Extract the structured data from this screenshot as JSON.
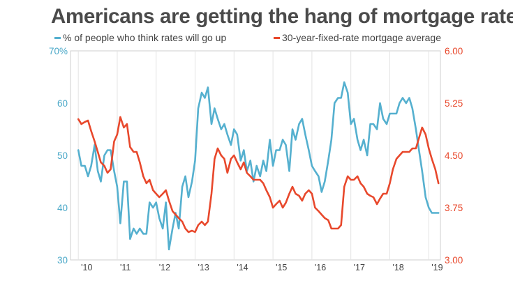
{
  "chart_data": {
    "type": "line",
    "title": "Americans are getting the hang of mortgage rates",
    "legend_placement": "top",
    "grid": "vertical",
    "x_ticks": [
      "'10",
      "'11",
      "'12",
      "'13",
      "'14",
      "'15",
      "'16",
      "'17",
      "'18",
      "'19"
    ],
    "xlim": [
      2009.8,
      2019.3
    ],
    "left_axis": {
      "range": [
        30,
        70
      ],
      "ticks": [
        {
          "value": 30,
          "label": "30"
        },
        {
          "value": 40,
          "label": "40"
        },
        {
          "value": 50,
          "label": "50"
        },
        {
          "value": 60,
          "label": "60"
        },
        {
          "value": 70,
          "label": "70%"
        }
      ],
      "color": "#4aa8c8"
    },
    "right_axis": {
      "range": [
        3.0,
        6.0
      ],
      "ticks": [
        {
          "value": 3.0,
          "label": "3.00"
        },
        {
          "value": 3.75,
          "label": "3.75"
        },
        {
          "value": 4.5,
          "label": "4.50"
        },
        {
          "value": 5.25,
          "label": "5.25"
        },
        {
          "value": 6.0,
          "label": "6.00"
        }
      ],
      "color": "#e8482c"
    },
    "series": [
      {
        "name": "% of people who think rates will go up",
        "axis": "left",
        "color": "#55b0cf",
        "x": [
          2010.0,
          2010.08,
          2010.17,
          2010.25,
          2010.33,
          2010.42,
          2010.5,
          2010.58,
          2010.67,
          2010.75,
          2010.83,
          2010.92,
          2011.0,
          2011.08,
          2011.17,
          2011.25,
          2011.33,
          2011.42,
          2011.5,
          2011.58,
          2011.67,
          2011.75,
          2011.83,
          2011.92,
          2012.0,
          2012.08,
          2012.17,
          2012.25,
          2012.33,
          2012.42,
          2012.5,
          2012.58,
          2012.67,
          2012.75,
          2012.83,
          2012.92,
          2013.0,
          2013.08,
          2013.17,
          2013.25,
          2013.33,
          2013.42,
          2013.5,
          2013.58,
          2013.67,
          2013.75,
          2013.83,
          2013.92,
          2014.0,
          2014.08,
          2014.17,
          2014.25,
          2014.33,
          2014.42,
          2014.5,
          2014.58,
          2014.67,
          2014.75,
          2014.83,
          2014.92,
          2015.0,
          2015.08,
          2015.17,
          2015.25,
          2015.33,
          2015.42,
          2015.5,
          2015.58,
          2015.67,
          2015.75,
          2015.83,
          2015.92,
          2016.0,
          2016.08,
          2016.17,
          2016.25,
          2016.33,
          2016.42,
          2016.5,
          2016.58,
          2016.67,
          2016.75,
          2016.83,
          2016.92,
          2017.0,
          2017.08,
          2017.17,
          2017.25,
          2017.33,
          2017.42,
          2017.5,
          2017.58,
          2017.67,
          2017.75,
          2017.83,
          2017.92,
          2018.0,
          2018.08,
          2018.17,
          2018.25,
          2018.33,
          2018.42,
          2018.5,
          2018.58,
          2018.67,
          2018.75,
          2018.83,
          2018.92,
          2019.0,
          2019.08,
          2019.17,
          2019.25
        ],
        "values": [
          51,
          48,
          48,
          46,
          48,
          52,
          47,
          45,
          50,
          51,
          51,
          47,
          44,
          37,
          45,
          45,
          34,
          36,
          35,
          36,
          35,
          35,
          41,
          40,
          41,
          38,
          36,
          41,
          32,
          36,
          39,
          36,
          44,
          46,
          42,
          45,
          49,
          59,
          62,
          61,
          63,
          56,
          59,
          57,
          55,
          56,
          54,
          52,
          55,
          54,
          49,
          51,
          47,
          49,
          45,
          48,
          46,
          49,
          47,
          53,
          48,
          51,
          51,
          53,
          52,
          47,
          55,
          53,
          56,
          57,
          54,
          51,
          48,
          47,
          46,
          43,
          45,
          49,
          53,
          60,
          61,
          61,
          64,
          62,
          56,
          57,
          53,
          51,
          53,
          50,
          56,
          56,
          55,
          60,
          57,
          56,
          58,
          58,
          58,
          60,
          61,
          60,
          61,
          59,
          55,
          51,
          47,
          42,
          40,
          39,
          39,
          39
        ]
      },
      {
        "name": "30-year-fixed-rate mortgage average",
        "axis": "right",
        "color": "#e8482c",
        "x": [
          2010.0,
          2010.08,
          2010.17,
          2010.25,
          2010.33,
          2010.42,
          2010.5,
          2010.58,
          2010.67,
          2010.75,
          2010.83,
          2010.92,
          2011.0,
          2011.08,
          2011.17,
          2011.25,
          2011.33,
          2011.42,
          2011.5,
          2011.58,
          2011.67,
          2011.75,
          2011.83,
          2011.92,
          2012.0,
          2012.08,
          2012.17,
          2012.25,
          2012.33,
          2012.42,
          2012.5,
          2012.58,
          2012.67,
          2012.75,
          2012.83,
          2012.92,
          2013.0,
          2013.08,
          2013.17,
          2013.25,
          2013.33,
          2013.42,
          2013.5,
          2013.58,
          2013.67,
          2013.75,
          2013.83,
          2013.92,
          2014.0,
          2014.08,
          2014.17,
          2014.25,
          2014.33,
          2014.42,
          2014.5,
          2014.58,
          2014.67,
          2014.75,
          2014.83,
          2014.92,
          2015.0,
          2015.08,
          2015.17,
          2015.25,
          2015.33,
          2015.42,
          2015.5,
          2015.58,
          2015.67,
          2015.75,
          2015.83,
          2015.92,
          2016.0,
          2016.08,
          2016.17,
          2016.25,
          2016.33,
          2016.42,
          2016.5,
          2016.58,
          2016.67,
          2016.75,
          2016.83,
          2016.92,
          2017.0,
          2017.08,
          2017.17,
          2017.25,
          2017.33,
          2017.42,
          2017.5,
          2017.58,
          2017.67,
          2017.75,
          2017.83,
          2017.92,
          2018.0,
          2018.08,
          2018.17,
          2018.25,
          2018.33,
          2018.42,
          2018.5,
          2018.58,
          2018.67,
          2018.75,
          2018.83,
          2018.92,
          2019.0,
          2019.08,
          2019.17,
          2019.25
        ],
        "values": [
          5.02,
          4.95,
          4.98,
          5.0,
          4.85,
          4.7,
          4.55,
          4.4,
          4.35,
          4.25,
          4.3,
          4.7,
          4.8,
          5.05,
          4.9,
          4.95,
          4.62,
          4.55,
          4.55,
          4.4,
          4.2,
          4.1,
          4.15,
          4.0,
          3.95,
          3.9,
          3.95,
          4.0,
          3.85,
          3.7,
          3.65,
          3.6,
          3.55,
          3.45,
          3.4,
          3.42,
          3.4,
          3.5,
          3.55,
          3.5,
          3.55,
          3.95,
          4.45,
          4.6,
          4.5,
          4.45,
          4.25,
          4.45,
          4.5,
          4.4,
          4.3,
          4.4,
          4.25,
          4.2,
          4.15,
          4.15,
          4.15,
          4.1,
          4.0,
          3.9,
          3.75,
          3.8,
          3.85,
          3.75,
          3.82,
          3.95,
          4.05,
          3.95,
          3.92,
          3.85,
          3.95,
          4.0,
          3.95,
          3.75,
          3.7,
          3.65,
          3.6,
          3.57,
          3.45,
          3.45,
          3.45,
          3.5,
          4.05,
          4.2,
          4.15,
          4.15,
          4.2,
          4.1,
          4.05,
          3.95,
          3.92,
          3.9,
          3.8,
          3.88,
          3.95,
          3.95,
          4.1,
          4.3,
          4.45,
          4.5,
          4.55,
          4.55,
          4.55,
          4.6,
          4.6,
          4.75,
          4.9,
          4.8,
          4.6,
          4.45,
          4.3,
          4.1
        ]
      }
    ]
  }
}
